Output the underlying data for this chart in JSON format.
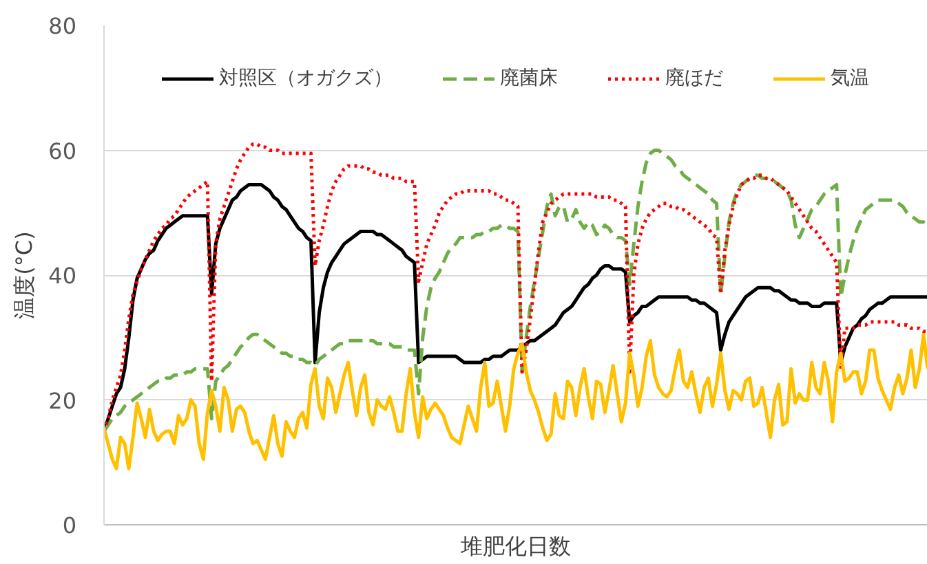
{
  "chart_data": {
    "type": "line",
    "xlabel": "堆肥化日数",
    "ylabel": "温度(°C)",
    "categories": [
      null,
      null,
      null,
      null,
      null,
      null,
      null,
      null,
      null,
      null,
      null,
      null,
      null,
      null,
      null,
      null,
      null,
      null,
      null,
      null,
      null,
      null,
      null,
      null,
      null,
      null,
      null,
      null,
      null,
      null,
      null,
      null,
      null,
      null,
      null,
      null,
      null,
      null,
      null,
      null,
      null,
      null,
      null,
      null,
      null,
      null,
      null,
      null,
      null,
      null,
      null,
      null,
      null,
      null,
      null,
      null,
      null,
      null,
      null,
      null,
      null,
      null,
      null,
      null,
      null,
      null,
      null,
      null,
      null,
      null,
      null,
      null,
      null,
      null,
      null,
      null,
      null,
      null,
      null,
      null,
      null,
      null,
      null,
      null,
      null,
      null,
      null,
      null,
      null,
      null,
      null,
      null,
      null,
      null,
      null,
      null,
      null,
      null,
      null,
      null,
      null,
      null,
      null,
      null,
      null,
      null,
      null,
      null,
      null,
      null,
      null,
      null,
      null,
      null,
      null,
      null,
      null,
      null,
      null,
      null,
      null,
      null,
      null,
      null,
      null,
      null,
      null,
      null,
      null,
      null,
      null,
      null,
      null,
      null,
      null,
      null,
      null,
      null,
      null,
      null,
      null,
      null,
      null,
      null,
      null,
      null,
      null,
      null,
      null,
      null,
      null,
      null,
      null,
      null,
      null,
      null,
      null,
      null,
      null,
      null,
      null,
      null,
      null,
      null,
      null,
      null,
      null,
      null,
      null,
      null,
      null,
      null,
      null,
      null,
      null,
      null,
      null,
      null,
      null,
      null,
      null,
      null,
      null,
      null,
      null,
      null,
      null,
      null,
      null,
      null,
      null,
      null,
      null,
      null,
      null,
      null,
      null,
      null,
      null,
      null
    ],
    "series": [
      {
        "name": "対照区（オガクズ）",
        "color": "#000000",
        "line_style": "solid",
        "values": [
          15,
          17,
          19,
          21,
          22,
          25,
          30,
          36,
          39.5,
          41,
          42.5,
          43.5,
          44,
          45.5,
          46.5,
          47.5,
          48,
          48.5,
          49,
          49.5,
          49.5,
          49.5,
          49.5,
          49.5,
          49.5,
          49.5,
          37,
          45,
          47.5,
          49,
          50.5,
          52,
          52.5,
          53.5,
          54,
          54.5,
          54.5,
          54.5,
          54.5,
          54,
          53.5,
          52.5,
          52,
          51,
          50.5,
          49.5,
          48.5,
          47.5,
          47,
          46,
          45.5,
          26,
          34,
          38,
          40.5,
          42,
          43,
          44,
          45,
          45.5,
          46,
          46.5,
          47,
          47,
          47,
          47,
          46.5,
          46.5,
          46,
          45.5,
          45,
          44.5,
          44,
          43,
          42.5,
          42,
          26,
          26.5,
          27,
          27,
          27,
          27,
          27,
          27,
          27,
          27,
          26.5,
          26,
          26,
          26,
          26,
          26,
          26.5,
          26.5,
          27,
          27,
          27,
          27.5,
          28,
          28,
          28,
          28.5,
          29,
          29.5,
          29.5,
          30,
          30.5,
          31,
          31.5,
          32,
          33,
          34,
          34.5,
          35,
          36,
          37,
          38,
          38.5,
          39.5,
          40,
          41,
          41.5,
          41.5,
          41,
          41,
          41,
          40.5,
          32.5,
          33.5,
          34,
          35,
          35,
          35.5,
          36,
          36.5,
          36.5,
          36.5,
          36.5,
          36.5,
          36.5,
          36.5,
          36.5,
          36,
          36,
          35.5,
          35.5,
          35,
          34.5,
          34,
          28,
          30.5,
          32.5,
          33.5,
          34.5,
          35.5,
          36.5,
          37,
          37.5,
          38,
          38,
          38,
          38,
          37.5,
          37.5,
          37,
          36.5,
          36,
          36,
          35.5,
          35.5,
          35.5,
          35,
          35,
          35,
          35.5,
          35.5,
          35.5,
          35.5,
          26,
          28.5,
          30,
          31.5,
          32,
          33,
          33.5,
          34.5,
          35,
          35.5,
          35.5,
          36,
          36.5,
          36.5,
          36.5,
          36.5,
          36.5,
          36.5,
          36.5,
          36.5,
          36.5,
          36.5
        ]
      },
      {
        "name": "廃菌床",
        "color": "#70ad47",
        "line_style": "dashed",
        "values": [
          15,
          16,
          17,
          17.5,
          18,
          19,
          19.5,
          20,
          20.5,
          21,
          21.5,
          22,
          22.5,
          23,
          23,
          23.5,
          23.5,
          24,
          24,
          24,
          24.5,
          24.5,
          25,
          25,
          25,
          25,
          17,
          23,
          24,
          25,
          25.5,
          26.5,
          27.5,
          28.5,
          29,
          30,
          30.5,
          30.5,
          30,
          29.5,
          29,
          28.5,
          28,
          27.5,
          27.5,
          27,
          27,
          26.5,
          26.5,
          26,
          26,
          25.5,
          26.5,
          27,
          27.5,
          28,
          28.5,
          29,
          29,
          29.5,
          29.5,
          29.5,
          29.5,
          29.5,
          29.5,
          29.5,
          29,
          29,
          29,
          29,
          28.5,
          28.5,
          28.5,
          28,
          28,
          28,
          21,
          30,
          35,
          38,
          39.5,
          40.5,
          42,
          43.5,
          44.5,
          45,
          46,
          46,
          46,
          46,
          46.5,
          46.5,
          47,
          47,
          47.5,
          47.5,
          48,
          48,
          47.5,
          47.5,
          47,
          24.5,
          30,
          35,
          39,
          43,
          47,
          51,
          53,
          49.5,
          51,
          51,
          48.5,
          49,
          50.5,
          48.5,
          47.5,
          48.5,
          48,
          46.5,
          47,
          48,
          47.5,
          46.5,
          46,
          46,
          45.5,
          38.5,
          45,
          51,
          55,
          58,
          59.5,
          60,
          60,
          59.5,
          59,
          58.5,
          57.5,
          57,
          56,
          55.5,
          55,
          54.5,
          54,
          53.5,
          53,
          52,
          51.5,
          37,
          43,
          48.5,
          51.5,
          53.5,
          54.5,
          55,
          55.5,
          56,
          56,
          55.5,
          55.5,
          55,
          55,
          54.5,
          54,
          53.5,
          52,
          48,
          46,
          47.5,
          49,
          50.5,
          51,
          52,
          53,
          53.5,
          54,
          54.5,
          36.5,
          40,
          43,
          45.5,
          47.5,
          49,
          50.5,
          51,
          51.5,
          52,
          52,
          52,
          52,
          52,
          51.5,
          51,
          50,
          49.5,
          49,
          48.5,
          48.5,
          48
        ]
      },
      {
        "name": "廃ほだ",
        "color": "#ff0000",
        "line_style": "dotted",
        "values": [
          15,
          17,
          20,
          22,
          24,
          28,
          33,
          37,
          39,
          41,
          42.5,
          44,
          45.5,
          46.5,
          47.5,
          48,
          49,
          49.5,
          50.5,
          51.5,
          52.5,
          53,
          53.5,
          54,
          54.5,
          55,
          23,
          45,
          49,
          51,
          53,
          55,
          57,
          58.5,
          59.5,
          60.5,
          61,
          61,
          60.5,
          60.5,
          60,
          60,
          60,
          59.5,
          59.5,
          59.5,
          59.5,
          59.5,
          59.5,
          59.5,
          59.5,
          41.5,
          45.5,
          48,
          51,
          53.5,
          55,
          56,
          57,
          57.5,
          57.5,
          57.5,
          57.5,
          57,
          57,
          56.5,
          56.5,
          56,
          56,
          56,
          55.5,
          55.5,
          55.5,
          55,
          55,
          55,
          39,
          42,
          45,
          46.5,
          48,
          50,
          51,
          52,
          52.5,
          53,
          53,
          53.5,
          53.5,
          53.5,
          53.5,
          53.5,
          53.5,
          53.5,
          53,
          53,
          52.5,
          52,
          52,
          51.5,
          51,
          24.5,
          28,
          33,
          38.5,
          44,
          48.5,
          50,
          51.5,
          52,
          52.5,
          53,
          53,
          53,
          53,
          53,
          53,
          53,
          53,
          52.5,
          52.5,
          52.5,
          52.5,
          52,
          52,
          51.5,
          51,
          24.5,
          40,
          45,
          47.5,
          49,
          50,
          50.5,
          51,
          51.5,
          51.5,
          51,
          51,
          50.5,
          50.5,
          50,
          49.5,
          49,
          48.5,
          48,
          47.5,
          46.5,
          46,
          37,
          44,
          48,
          51,
          53,
          54.5,
          55,
          55.5,
          55.5,
          56,
          56,
          55.5,
          55.5,
          55,
          54.5,
          54,
          53.5,
          52.5,
          51.5,
          50.5,
          49.5,
          48.5,
          47.5,
          47,
          46,
          45,
          44,
          43,
          42,
          25,
          31.5,
          31.5,
          31.5,
          32,
          32,
          32,
          32.5,
          32.5,
          32.5,
          32.5,
          32.5,
          32.5,
          32.5,
          32,
          32,
          32,
          31.5,
          31.5,
          31.5,
          31,
          31
        ]
      },
      {
        "name": "気温",
        "color": "#ffc000",
        "line_style": "solid",
        "values": [
          15.5,
          13,
          10.5,
          9,
          14,
          13,
          9,
          14,
          19.5,
          17,
          14,
          18.5,
          15,
          13.5,
          14.5,
          15,
          15,
          13,
          17.5,
          16,
          17,
          20,
          19,
          13,
          10.5,
          18,
          21.5,
          19,
          15,
          22,
          20,
          15,
          18.5,
          19,
          18,
          15,
          13,
          13.5,
          12,
          10.5,
          14,
          17.5,
          13,
          11,
          16.5,
          15,
          14,
          17,
          18,
          15.5,
          22.5,
          25,
          19,
          17,
          23.5,
          22,
          18,
          21,
          24,
          26,
          21.5,
          17.5,
          22,
          24,
          18,
          16,
          20,
          19,
          18.5,
          20.5,
          18,
          15,
          15,
          21,
          25,
          18,
          14,
          20.5,
          17,
          18.5,
          19.5,
          18.5,
          17.5,
          15.5,
          14,
          13.5,
          13,
          16,
          19,
          17,
          15,
          22,
          26,
          19,
          19.5,
          23,
          19,
          15,
          19,
          25,
          27.5,
          29,
          24.5,
          21.5,
          20,
          18,
          15.5,
          13.5,
          14.5,
          21,
          17.5,
          17,
          23,
          22,
          17.5,
          22,
          25,
          20.5,
          17,
          23,
          22.5,
          18,
          21.5,
          25.5,
          21,
          16.5,
          19.5,
          27.5,
          24,
          19,
          22,
          27,
          29.5,
          24,
          22,
          21,
          20.5,
          21.5,
          25,
          28,
          23,
          22,
          24.5,
          21,
          18,
          22,
          23.5,
          19,
          22.5,
          27.5,
          21.5,
          18.5,
          21.5,
          21,
          20,
          23,
          23.5,
          19,
          19.5,
          22,
          18,
          14,
          20,
          22.5,
          16,
          16.5,
          25,
          19.5,
          21,
          20,
          20,
          26,
          22,
          21,
          26,
          23,
          16.5,
          24.5,
          27.5,
          23,
          23.5,
          24.5,
          24.5,
          21,
          23,
          28,
          28,
          23.5,
          21.5,
          20,
          18.5,
          22,
          24,
          21,
          23.5,
          28,
          22,
          25,
          30.5,
          25
        ]
      }
    ],
    "ylim": [
      0,
      80
    ],
    "yticks": [
      0,
      20,
      40,
      60,
      80
    ],
    "grid": "y",
    "legend": "top",
    "tick_labels": "y"
  }
}
